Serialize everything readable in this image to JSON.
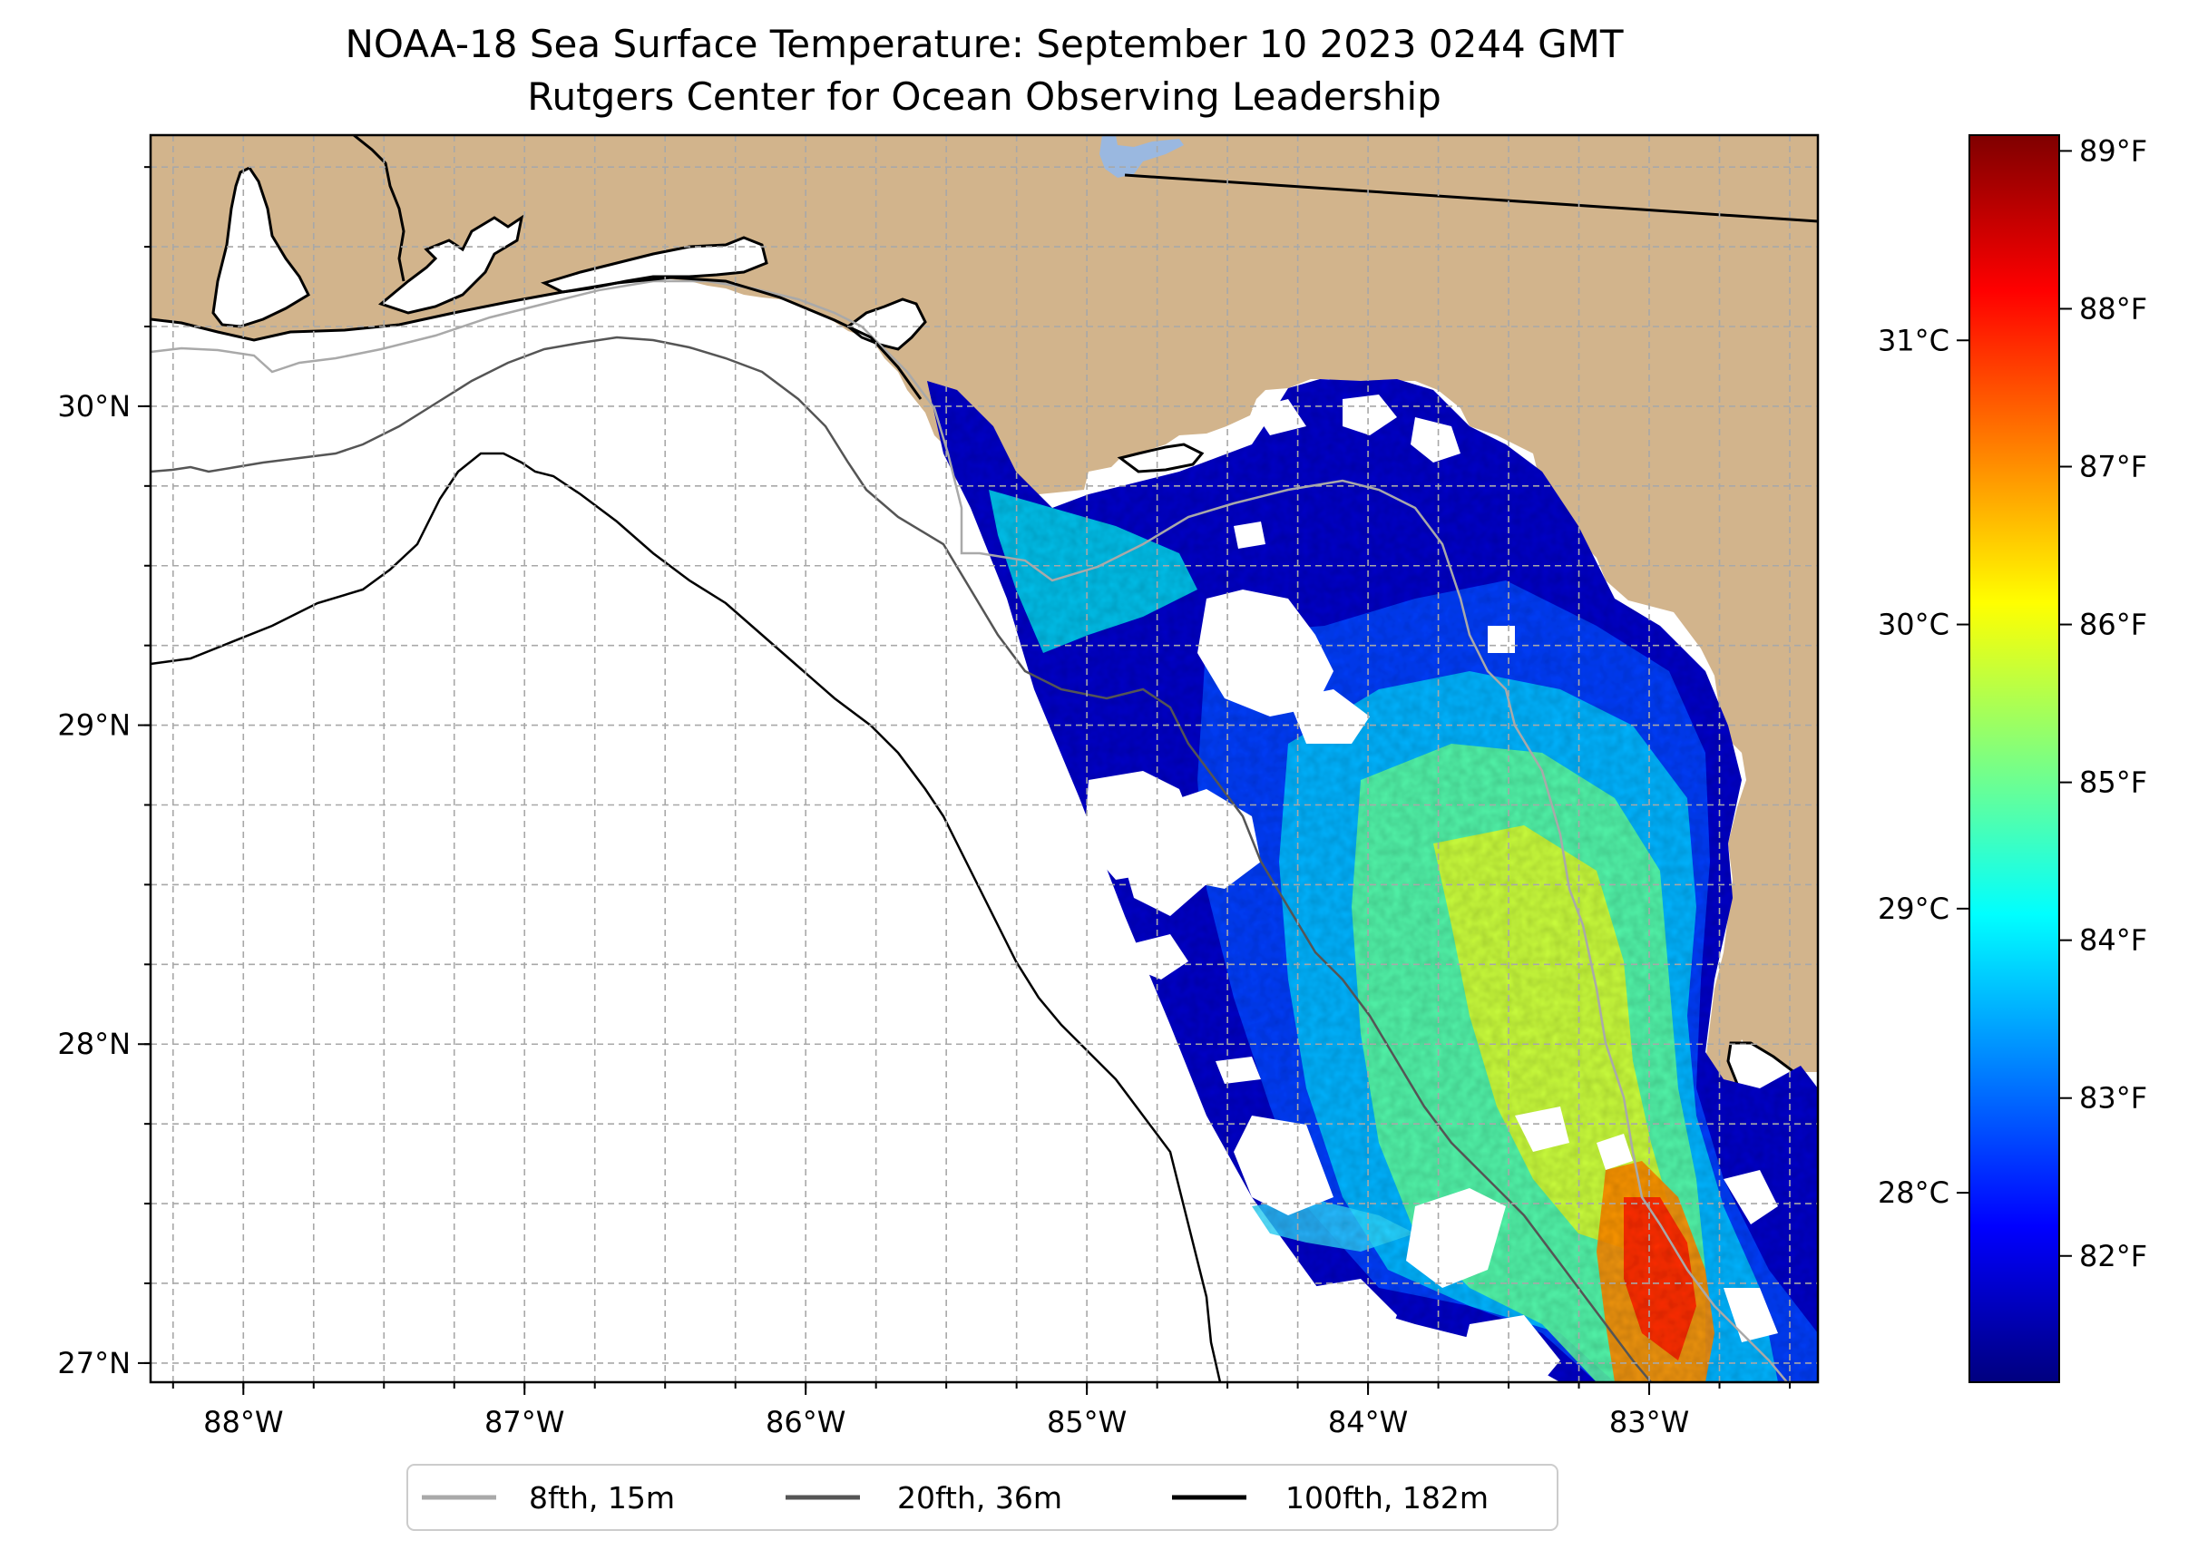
{
  "title": {
    "line1": "NOAA-18 Sea Surface Temperature: September 10 2023 0244 GMT",
    "line2": "Rutgers Center for Ocean Observing Leadership"
  },
  "map": {
    "lon_range": [
      -88.33,
      -82.4
    ],
    "lat_range": [
      26.94,
      30.85
    ],
    "lon_ticks": [
      {
        "value": -88,
        "label": "88°W"
      },
      {
        "value": -87,
        "label": "87°W"
      },
      {
        "value": -86,
        "label": "86°W"
      },
      {
        "value": -85,
        "label": "85°W"
      },
      {
        "value": -84,
        "label": "84°W"
      },
      {
        "value": -83,
        "label": "83°W"
      }
    ],
    "lat_ticks": [
      {
        "value": 30,
        "label": "30°N"
      },
      {
        "value": 29,
        "label": "29°N"
      },
      {
        "value": 28,
        "label": "28°N"
      },
      {
        "value": 27,
        "label": "27°N"
      }
    ],
    "grid_step_deg": 0.25,
    "colors": {
      "land": "#d2b48c",
      "ocean": "#ffffff",
      "lake": "#9ab8e0",
      "grid": "#a8a8a8",
      "coast": "#000000"
    }
  },
  "legend": {
    "items": [
      {
        "label": "8fth, 15m",
        "color": "#a9a9a9"
      },
      {
        "label": "20fth, 36m",
        "color": "#555555"
      },
      {
        "label": "100fth, 182m",
        "color": "#000000"
      }
    ]
  },
  "colorbar": {
    "colormap": "jet",
    "colors": [
      "#00007f",
      "#0000ff",
      "#007fff",
      "#00ffff",
      "#7fff7f",
      "#ffff00",
      "#ff7f00",
      "#ff0000",
      "#7f0000"
    ],
    "range_f": [
      81.2,
      89.1
    ],
    "fahrenheit_ticks": [
      {
        "value": 82,
        "label": "82°F"
      },
      {
        "value": 83,
        "label": "83°F"
      },
      {
        "value": 84,
        "label": "84°F"
      },
      {
        "value": 85,
        "label": "85°F"
      },
      {
        "value": 86,
        "label": "86°F"
      },
      {
        "value": 87,
        "label": "87°F"
      },
      {
        "value": 88,
        "label": "88°F"
      },
      {
        "value": 89,
        "label": "89°F"
      }
    ],
    "celsius_ticks": [
      {
        "value": 28,
        "label": "28°C"
      },
      {
        "value": 29,
        "label": "29°C"
      },
      {
        "value": 30,
        "label": "30°C"
      },
      {
        "value": 31,
        "label": "31°C"
      }
    ]
  }
}
